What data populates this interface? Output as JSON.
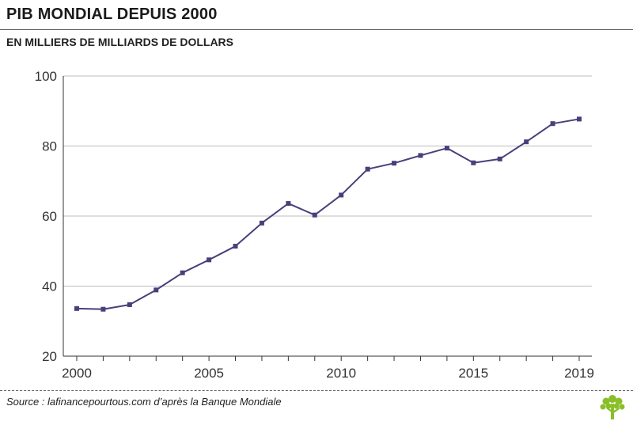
{
  "header": {
    "title": "PIB MONDIAL DEPUIS 2000",
    "subtitle": "EN MILLIERS DE MILLIARDS DE DOLLARS"
  },
  "footer": {
    "source": "Source : lafinancepourtous.com d’après la Banque Mondiale"
  },
  "colors": {
    "line": "#4a3f7a",
    "marker": "#4a3f7a",
    "grid": "#bdbdbd",
    "axis": "#333333",
    "logo": "#8bbf2a"
  },
  "icons": {
    "logo": "tree-logo-icon"
  },
  "chart_data": {
    "type": "line",
    "x": [
      2000,
      2001,
      2002,
      2003,
      2004,
      2005,
      2006,
      2007,
      2008,
      2009,
      2010,
      2011,
      2012,
      2013,
      2014,
      2015,
      2016,
      2017,
      2018,
      2019
    ],
    "series": [
      {
        "values": [
          33.6,
          33.4,
          34.7,
          38.9,
          43.8,
          47.5,
          51.4,
          58.0,
          63.6,
          60.3,
          66.0,
          73.4,
          75.1,
          77.3,
          79.4,
          75.2,
          76.3,
          81.2,
          86.4,
          87.7
        ]
      }
    ],
    "xticks": [
      2000,
      2005,
      2010,
      2015,
      2019
    ],
    "yticks": [
      20,
      40,
      60,
      80,
      100
    ],
    "ylim": [
      20,
      100
    ],
    "xlim": [
      2000,
      2019
    ],
    "grid": true,
    "legend": "none"
  }
}
